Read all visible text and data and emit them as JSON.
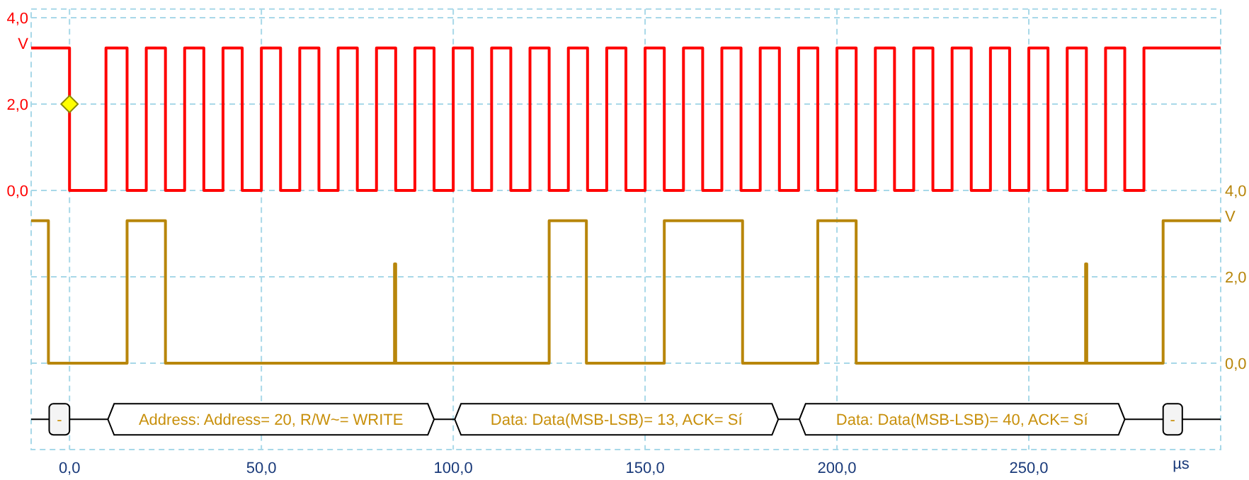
{
  "chart_data": {
    "type": "step",
    "xlabel": "µs",
    "ylabel": "V",
    "y2label": "V",
    "xlim": [
      -10,
      300
    ],
    "xticks": [
      {
        "value": 0,
        "label": "0,0"
      },
      {
        "value": 50,
        "label": "50,0"
      },
      {
        "value": 100,
        "label": "100,0"
      },
      {
        "value": 150,
        "label": "150,0"
      },
      {
        "value": 200,
        "label": "200,0"
      },
      {
        "value": 250,
        "label": "250,0"
      }
    ],
    "ylim": [
      -6,
      4.2
    ],
    "yticks": [
      {
        "value": 0,
        "label": "0,0"
      },
      {
        "value": 2,
        "label": "2,0"
      },
      {
        "value": 4,
        "label": "4,0"
      }
    ],
    "y2lim": [
      -2,
      8.2
    ],
    "y2ticks": [
      {
        "value": 0,
        "label": "0,0"
      },
      {
        "value": 2,
        "label": "2,0"
      },
      {
        "value": 4,
        "label": "4,0"
      }
    ],
    "grid": true,
    "ref_lines": [
      {
        "axis": "y2",
        "value": -1.3,
        "color": "#000000"
      }
    ],
    "series": [
      {
        "color": "#ff0000",
        "x": [
          -10,
          0,
          9.5,
          15,
          20,
          25,
          30,
          35,
          40,
          45,
          50,
          55,
          60,
          65,
          70,
          75,
          80,
          85,
          90,
          95,
          100,
          105,
          110,
          115,
          120,
          125,
          130,
          135,
          140,
          145,
          150,
          155,
          160,
          165,
          170,
          175,
          180,
          185,
          190,
          195,
          200,
          205,
          210,
          215,
          220,
          225,
          230,
          235,
          240,
          245,
          250,
          255,
          260,
          265,
          270,
          275,
          280,
          300
        ],
        "values": [
          3.3,
          0,
          3.3,
          0,
          3.3,
          0,
          3.3,
          0,
          3.3,
          0,
          3.3,
          0,
          3.3,
          0,
          3.3,
          0,
          3.3,
          0,
          3.3,
          0,
          3.3,
          0,
          3.3,
          0,
          3.3,
          0,
          3.3,
          0,
          3.3,
          0,
          3.3,
          0,
          3.3,
          0,
          3.3,
          0,
          3.3,
          0,
          3.3,
          0,
          3.3,
          0,
          3.3,
          0,
          3.3,
          0,
          3.3,
          0,
          3.3,
          0,
          3.3,
          0,
          3.3,
          0,
          3.3,
          0,
          3.3,
          3.3
        ]
      },
      {
        "color": "#b8860b",
        "axis": "y2",
        "x": [
          -10,
          -5.5,
          15,
          25,
          84.7,
          85,
          125,
          134.7,
          155,
          175.4,
          195,
          205,
          264.8,
          265.1,
          285,
          300
        ],
        "values": [
          3.3,
          0,
          3.3,
          0,
          2.3,
          0,
          3.3,
          0,
          3.3,
          0,
          3.3,
          0,
          2.3,
          0,
          3.3,
          3.3
        ]
      },
      {
        "type": "scatter",
        "color": "#ffff00",
        "marker": "diamond",
        "x": [
          0
        ],
        "values": [
          2
        ]
      }
    ],
    "bands": [
      {
        "axis": "x",
        "from": -5.3,
        "to": 0,
        "label": "-"
      },
      {
        "axis": "x",
        "from": 10,
        "to": 95,
        "label": "Address: Address= 20, R/W~= WRITE"
      },
      {
        "axis": "x",
        "from": 100.4,
        "to": 184.7,
        "label": "Data: Data(MSB-LSB)= 13, ACK= Sí"
      },
      {
        "axis": "x",
        "from": 190.2,
        "to": 275,
        "label": "Data: Data(MSB-LSB)= 40, ACK= Sí"
      },
      {
        "axis": "x",
        "from": 285,
        "to": 290,
        "label": "-"
      }
    ]
  }
}
